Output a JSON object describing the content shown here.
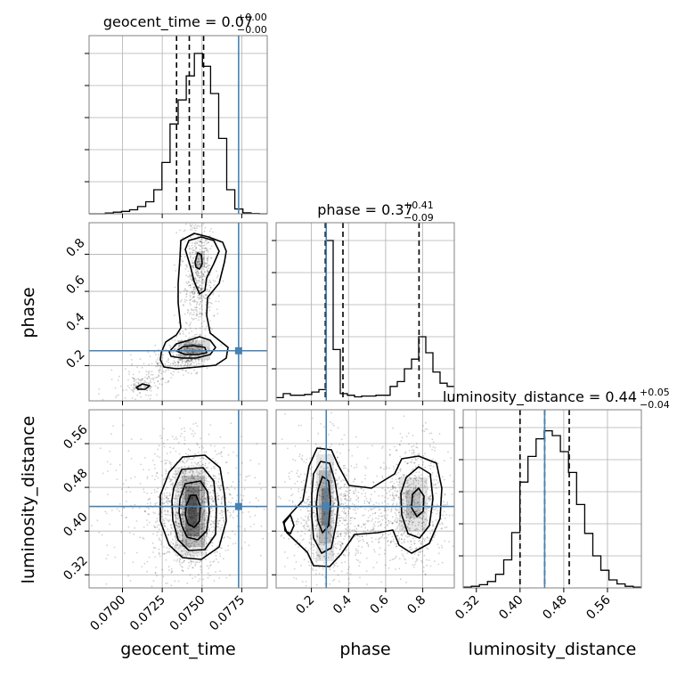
{
  "chart_data": {
    "type": "corner",
    "parameters": [
      "geocent_time",
      "phase",
      "luminosity_distance"
    ],
    "axis_labels": [
      "geocent_time",
      "phase",
      "luminosity_distance"
    ],
    "ranges": [
      [
        0.0679,
        0.0791
      ],
      [
        0.01,
        0.97
      ],
      [
        0.296,
        0.622
      ]
    ],
    "ticks": [
      [
        0.07,
        0.0725,
        0.075,
        0.0775
      ],
      [
        0.2,
        0.4,
        0.6,
        0.8
      ],
      [
        0.32,
        0.4,
        0.48,
        0.56
      ]
    ],
    "tick_labels": [
      [
        "0.0700",
        "0.0725",
        "0.0750",
        "0.0775"
      ],
      [
        "0.2",
        "0.4",
        "0.6",
        "0.8"
      ],
      [
        "0.32",
        "0.40",
        "0.48",
        "0.56"
      ]
    ],
    "titles": [
      {
        "name": "geocent_time",
        "value": "0.07",
        "plus": "+0.00",
        "minus": "−0.00"
      },
      {
        "name": "phase",
        "value": "0.37",
        "plus": "+0.41",
        "minus": "−0.09"
      },
      {
        "name": "luminosity_distance",
        "value": "0.44",
        "plus": "+0.05",
        "minus": "−0.04"
      }
    ],
    "quantiles": [
      [
        0.0734,
        0.0742,
        0.0751
      ],
      [
        0.275,
        0.37,
        0.78
      ],
      [
        0.4,
        0.445,
        0.49
      ]
    ],
    "truths": [
      0.0773,
      0.28,
      0.445
    ],
    "histograms": [
      [
        0.0,
        0.0,
        0.005,
        0.01,
        0.015,
        0.025,
        0.045,
        0.075,
        0.15,
        0.32,
        0.56,
        0.71,
        0.86,
        1.0,
        0.92,
        0.75,
        0.47,
        0.15,
        0.03,
        0.006,
        0.002,
        0.0
      ],
      [
        0.02,
        0.045,
        0.035,
        0.035,
        0.04,
        0.055,
        0.07,
        1.0,
        0.32,
        0.045,
        0.035,
        0.025,
        0.03,
        0.03,
        0.035,
        0.035,
        0.09,
        0.12,
        0.2,
        0.26,
        0.4,
        0.3,
        0.18,
        0.11,
        0.09
      ],
      [
        0.005,
        0.01,
        0.02,
        0.04,
        0.085,
        0.175,
        0.345,
        0.66,
        0.82,
        0.93,
        0.98,
        0.95,
        0.85,
        0.72,
        0.52,
        0.34,
        0.2,
        0.11,
        0.05,
        0.025,
        0.01,
        0.005
      ]
    ],
    "grid": true
  }
}
